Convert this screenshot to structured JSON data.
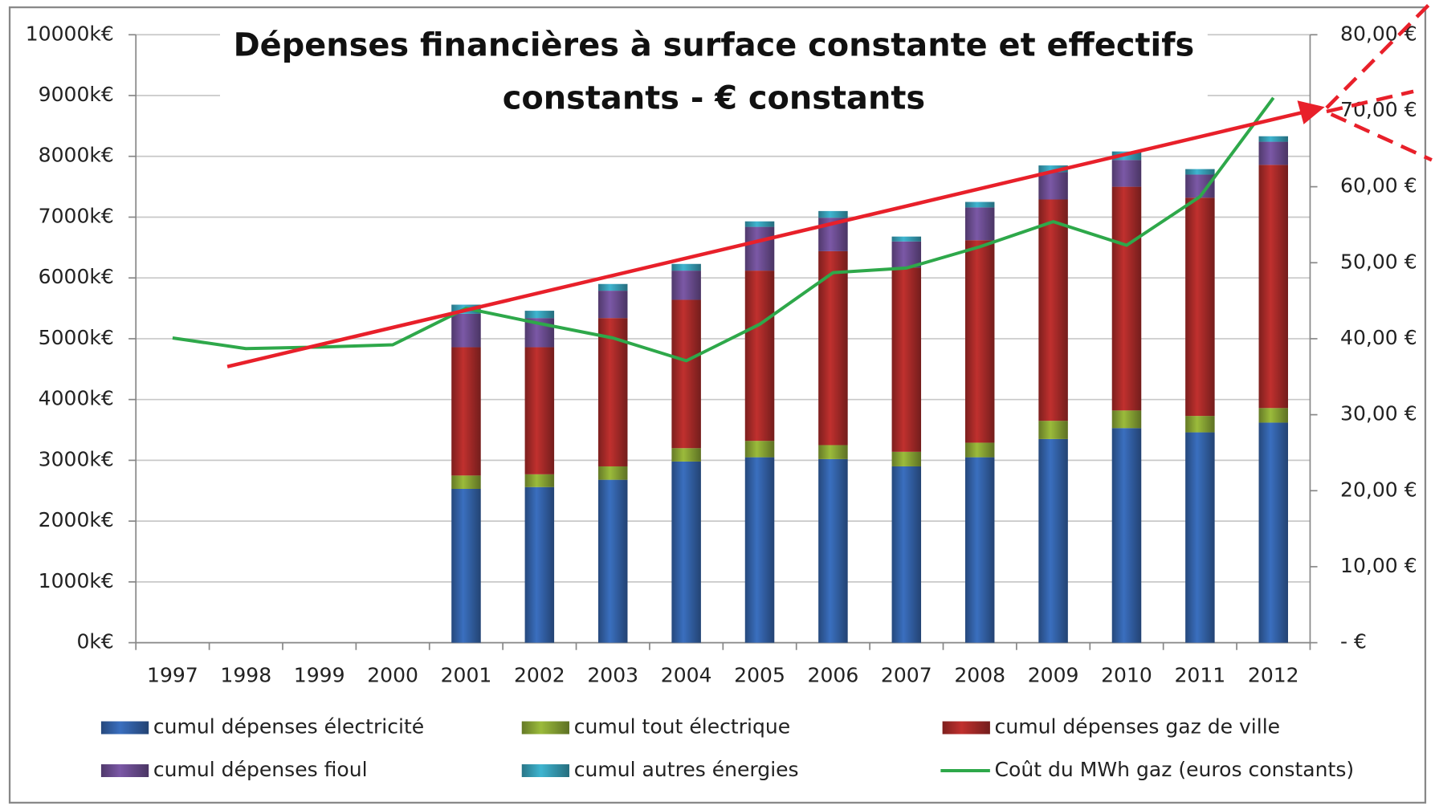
{
  "chart_data": {
    "type": "bar",
    "title": "Dépenses financières à surface constante et effectifs constants - € constants",
    "categories": [
      "1997",
      "1998",
      "1999",
      "2000",
      "2001",
      "2002",
      "2003",
      "2004",
      "2005",
      "2006",
      "2007",
      "2008",
      "2009",
      "2010",
      "2011",
      "2012"
    ],
    "series": [
      {
        "name": "cumul dépenses électricité",
        "color": "#3a6fbf",
        "values": [
          null,
          null,
          null,
          null,
          2530,
          2560,
          2680,
          2980,
          3050,
          3020,
          2900,
          3050,
          3350,
          3530,
          3460,
          3620
        ]
      },
      {
        "name": "cumul tout électrique",
        "color": "#9bbb3b",
        "values": [
          null,
          null,
          null,
          null,
          220,
          210,
          220,
          220,
          270,
          230,
          240,
          240,
          300,
          290,
          270,
          240
        ]
      },
      {
        "name": "cumul dépenses gaz de ville",
        "color": "#c0302e",
        "values": [
          null,
          null,
          null,
          null,
          2110,
          2090,
          2440,
          2440,
          2800,
          3190,
          3030,
          3330,
          3640,
          3680,
          3590,
          4000
        ]
      },
      {
        "name": "cumul dépenses fioul",
        "color": "#7b58a6",
        "values": [
          null,
          null,
          null,
          null,
          550,
          480,
          450,
          480,
          720,
          550,
          430,
          540,
          450,
          440,
          380,
          380
        ]
      },
      {
        "name": "cumul autres énergies",
        "color": "#3fb5d0",
        "values": [
          null,
          null,
          null,
          null,
          150,
          120,
          110,
          110,
          90,
          110,
          80,
          90,
          110,
          140,
          90,
          90
        ]
      },
      {
        "name": "Coût du MWh gaz (euros constants)",
        "color": "#2ea84a",
        "type": "line",
        "axis": "y2",
        "values": [
          40.1,
          38.7,
          38.9,
          39.2,
          44.0,
          42.0,
          40.1,
          37.1,
          41.9,
          48.7,
          49.3,
          52.1,
          55.4,
          52.3,
          58.7,
          71.7
        ]
      }
    ],
    "stacked": true,
    "ylim": [
      0,
      10000
    ],
    "yticks": [
      {
        "value": 0,
        "label": "0k€"
      },
      {
        "value": 1000,
        "label": "1000k€"
      },
      {
        "value": 2000,
        "label": "2000k€"
      },
      {
        "value": 3000,
        "label": "3000k€"
      },
      {
        "value": 4000,
        "label": "4000k€"
      },
      {
        "value": 5000,
        "label": "5000k€"
      },
      {
        "value": 6000,
        "label": "6000k€"
      },
      {
        "value": 7000,
        "label": "7000k€"
      },
      {
        "value": 8000,
        "label": "8000k€"
      },
      {
        "value": 9000,
        "label": "9000k€"
      },
      {
        "value": 10000,
        "label": "10000k€"
      }
    ],
    "y2lim": [
      0,
      80
    ],
    "y2ticks": [
      {
        "value": 0,
        "label": "-  €"
      },
      {
        "value": 10,
        "label": "10,00 €"
      },
      {
        "value": 20,
        "label": "20,00 €"
      },
      {
        "value": 30,
        "label": "30,00 €"
      },
      {
        "value": 40,
        "label": "40,00 €"
      },
      {
        "value": 50,
        "label": "50,00 €"
      },
      {
        "value": 60,
        "label": "60,00 €"
      },
      {
        "value": 70,
        "label": "70,00 €"
      },
      {
        "value": 80,
        "label": "80,00 €"
      }
    ],
    "grid": true,
    "legend": "bottom"
  }
}
